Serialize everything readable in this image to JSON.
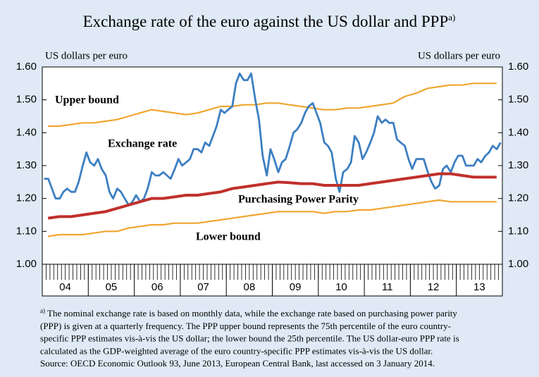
{
  "chart_data": {
    "type": "line",
    "title": "Exchange rate of the euro against the US dollar and PPP",
    "title_marker": "a)",
    "y_label": "US dollars per euro",
    "y2_label": "US dollars per euro",
    "xlim": [
      2004,
      2014
    ],
    "xticks": [
      {
        "value": 2004.5,
        "label": "04"
      },
      {
        "value": 2005.5,
        "label": "05"
      },
      {
        "value": 2006.5,
        "label": "06"
      },
      {
        "value": 2007.5,
        "label": "07"
      },
      {
        "value": 2008.5,
        "label": "08"
      },
      {
        "value": 2009.5,
        "label": "09"
      },
      {
        "value": 2010.5,
        "label": "10"
      },
      {
        "value": 2011.5,
        "label": "11"
      },
      {
        "value": 2012.5,
        "label": "12"
      },
      {
        "value": 2013.5,
        "label": "13"
      }
    ],
    "year_boundaries": [
      2005,
      2006,
      2007,
      2008,
      2009,
      2010,
      2011,
      2012,
      2013
    ],
    "ylim": [
      1.0,
      1.6
    ],
    "yticks": [
      {
        "value": 1.0,
        "label": "1.00"
      },
      {
        "value": 1.1,
        "label": "1.10"
      },
      {
        "value": 1.2,
        "label": "1.20"
      },
      {
        "value": 1.3,
        "label": "1.30"
      },
      {
        "value": 1.4,
        "label": "1.40"
      },
      {
        "value": 1.5,
        "label": "1.50"
      },
      {
        "value": 1.6,
        "label": "1.60"
      }
    ],
    "series": [
      {
        "name": "Upper bound",
        "color": "#f0a52e",
        "x": [
          2004.125,
          2004.375,
          2004.625,
          2004.875,
          2005.125,
          2005.375,
          2005.625,
          2005.875,
          2006.125,
          2006.375,
          2006.625,
          2006.875,
          2007.125,
          2007.375,
          2007.625,
          2007.875,
          2008.125,
          2008.375,
          2008.625,
          2008.875,
          2009.125,
          2009.375,
          2009.625,
          2009.875,
          2010.125,
          2010.375,
          2010.625,
          2010.875,
          2011.125,
          2011.375,
          2011.625,
          2011.875,
          2012.125,
          2012.375,
          2012.625,
          2012.875,
          2013.125,
          2013.375,
          2013.625,
          2013.875
        ],
        "values": [
          1.42,
          1.42,
          1.425,
          1.43,
          1.43,
          1.435,
          1.44,
          1.45,
          1.46,
          1.47,
          1.465,
          1.46,
          1.455,
          1.46,
          1.47,
          1.48,
          1.48,
          1.485,
          1.485,
          1.49,
          1.49,
          1.485,
          1.48,
          1.475,
          1.47,
          1.47,
          1.475,
          1.475,
          1.48,
          1.485,
          1.49,
          1.51,
          1.52,
          1.535,
          1.54,
          1.545,
          1.545,
          1.55,
          1.55,
          1.55
        ]
      },
      {
        "name": "Exchange rate",
        "color": "#3d7fc1",
        "x": [
          2004.04,
          2004.13,
          2004.21,
          2004.29,
          2004.38,
          2004.46,
          2004.54,
          2004.63,
          2004.71,
          2004.79,
          2004.88,
          2004.96,
          2005.04,
          2005.13,
          2005.21,
          2005.29,
          2005.38,
          2005.46,
          2005.54,
          2005.63,
          2005.71,
          2005.79,
          2005.88,
          2005.96,
          2006.04,
          2006.13,
          2006.21,
          2006.29,
          2006.38,
          2006.46,
          2006.54,
          2006.63,
          2006.71,
          2006.79,
          2006.88,
          2006.96,
          2007.04,
          2007.13,
          2007.21,
          2007.29,
          2007.38,
          2007.46,
          2007.54,
          2007.63,
          2007.71,
          2007.79,
          2007.88,
          2007.96,
          2008.04,
          2008.13,
          2008.21,
          2008.29,
          2008.38,
          2008.46,
          2008.54,
          2008.63,
          2008.71,
          2008.79,
          2008.88,
          2008.96,
          2009.04,
          2009.13,
          2009.21,
          2009.29,
          2009.38,
          2009.46,
          2009.54,
          2009.63,
          2009.71,
          2009.79,
          2009.88,
          2009.96,
          2010.04,
          2010.13,
          2010.21,
          2010.29,
          2010.38,
          2010.46,
          2010.54,
          2010.63,
          2010.71,
          2010.79,
          2010.88,
          2010.96,
          2011.04,
          2011.13,
          2011.21,
          2011.29,
          2011.38,
          2011.46,
          2011.54,
          2011.63,
          2011.71,
          2011.79,
          2011.88,
          2011.96,
          2012.04,
          2012.13,
          2012.21,
          2012.29,
          2012.38,
          2012.46,
          2012.54,
          2012.63,
          2012.71,
          2012.79,
          2012.88,
          2012.96,
          2013.04,
          2013.13,
          2013.21,
          2013.29,
          2013.38,
          2013.46,
          2013.54,
          2013.63,
          2013.71,
          2013.79,
          2013.88,
          2013.96
        ],
        "values": [
          1.26,
          1.26,
          1.23,
          1.2,
          1.2,
          1.22,
          1.23,
          1.22,
          1.22,
          1.25,
          1.3,
          1.34,
          1.31,
          1.3,
          1.32,
          1.29,
          1.27,
          1.22,
          1.2,
          1.23,
          1.22,
          1.2,
          1.18,
          1.19,
          1.21,
          1.19,
          1.2,
          1.23,
          1.28,
          1.27,
          1.27,
          1.28,
          1.27,
          1.26,
          1.29,
          1.32,
          1.3,
          1.31,
          1.32,
          1.35,
          1.35,
          1.34,
          1.37,
          1.36,
          1.39,
          1.42,
          1.47,
          1.46,
          1.47,
          1.48,
          1.55,
          1.58,
          1.56,
          1.56,
          1.58,
          1.5,
          1.44,
          1.33,
          1.27,
          1.35,
          1.32,
          1.28,
          1.31,
          1.32,
          1.36,
          1.4,
          1.41,
          1.43,
          1.46,
          1.48,
          1.49,
          1.46,
          1.43,
          1.37,
          1.36,
          1.34,
          1.26,
          1.22,
          1.28,
          1.29,
          1.31,
          1.39,
          1.37,
          1.32,
          1.34,
          1.37,
          1.4,
          1.45,
          1.43,
          1.44,
          1.43,
          1.43,
          1.38,
          1.37,
          1.36,
          1.32,
          1.29,
          1.32,
          1.32,
          1.32,
          1.28,
          1.25,
          1.23,
          1.24,
          1.29,
          1.3,
          1.28,
          1.31,
          1.33,
          1.33,
          1.3,
          1.3,
          1.3,
          1.32,
          1.31,
          1.33,
          1.34,
          1.36,
          1.35,
          1.37
        ]
      },
      {
        "name": "Purchasing Power Parity",
        "color": "#c0302b",
        "x": [
          2004.125,
          2004.375,
          2004.625,
          2004.875,
          2005.125,
          2005.375,
          2005.625,
          2005.875,
          2006.125,
          2006.375,
          2006.625,
          2006.875,
          2007.125,
          2007.375,
          2007.625,
          2007.875,
          2008.125,
          2008.375,
          2008.625,
          2008.875,
          2009.125,
          2009.375,
          2009.625,
          2009.875,
          2010.125,
          2010.375,
          2010.625,
          2010.875,
          2011.125,
          2011.375,
          2011.625,
          2011.875,
          2012.125,
          2012.375,
          2012.625,
          2012.875,
          2013.125,
          2013.375,
          2013.625,
          2013.875
        ],
        "values": [
          1.14,
          1.145,
          1.145,
          1.15,
          1.155,
          1.16,
          1.17,
          1.18,
          1.19,
          1.2,
          1.2,
          1.205,
          1.21,
          1.21,
          1.215,
          1.22,
          1.23,
          1.235,
          1.24,
          1.245,
          1.25,
          1.248,
          1.245,
          1.245,
          1.24,
          1.24,
          1.24,
          1.24,
          1.245,
          1.25,
          1.255,
          1.26,
          1.265,
          1.27,
          1.275,
          1.275,
          1.27,
          1.265,
          1.265,
          1.265
        ]
      },
      {
        "name": "Lower bound",
        "color": "#f0a52e",
        "x": [
          2004.125,
          2004.375,
          2004.625,
          2004.875,
          2005.125,
          2005.375,
          2005.625,
          2005.875,
          2006.125,
          2006.375,
          2006.625,
          2006.875,
          2007.125,
          2007.375,
          2007.625,
          2007.875,
          2008.125,
          2008.375,
          2008.625,
          2008.875,
          2009.125,
          2009.375,
          2009.625,
          2009.875,
          2010.125,
          2010.375,
          2010.625,
          2010.875,
          2011.125,
          2011.375,
          2011.625,
          2011.875,
          2012.125,
          2012.375,
          2012.625,
          2012.875,
          2013.125,
          2013.375,
          2013.625,
          2013.875
        ],
        "values": [
          1.085,
          1.09,
          1.09,
          1.09,
          1.095,
          1.1,
          1.1,
          1.11,
          1.115,
          1.12,
          1.12,
          1.125,
          1.125,
          1.125,
          1.13,
          1.135,
          1.14,
          1.145,
          1.15,
          1.155,
          1.16,
          1.16,
          1.16,
          1.16,
          1.155,
          1.16,
          1.16,
          1.165,
          1.165,
          1.17,
          1.175,
          1.18,
          1.185,
          1.19,
          1.195,
          1.19,
          1.19,
          1.19,
          1.19,
          1.19
        ]
      }
    ],
    "footnote_marker": "a)",
    "footnote": [
      " The nominal exchange rate is based on monthly data, while the exchange rate based on purchasing power parity",
      "(PPP) is given at a quarterly frequency. The PPP upper bound represents the 75th percentile of the euro country-",
      "specific PPP estimates vis-à-vis the US dollar; the lower bound the 25th percentile. The US dollar-euro PPP rate is",
      "calculated as the GDP-weighted average of the euro country-specific PPP estimates vis-à-vis the US dollar.",
      "Source: OECD Economic Outlook 93, June 2013, European Central Bank, last accessed on 3 January 2014."
    ]
  }
}
